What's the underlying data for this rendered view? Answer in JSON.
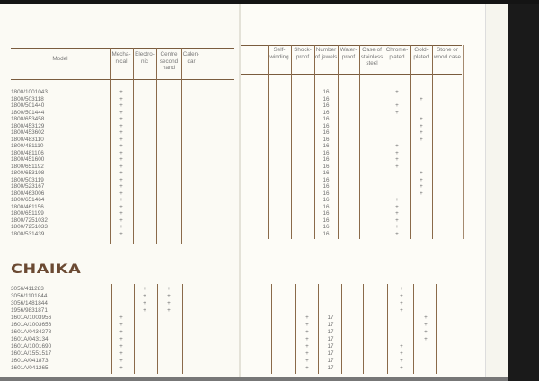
{
  "headers": {
    "model": "Model",
    "mechanical": "Mecha-\nnical",
    "electronic": "Electro-\nnic",
    "centre_second": "Centre\nsecond\nhand",
    "calendar": "Calen-\ndar",
    "self_winding": "Self-\nwinding",
    "shockproof": "Shock-\nproof",
    "jewels": "Number\nof jewels",
    "waterproof": "Water-\nproof",
    "stainless": "Case of\nstainless\nsteel",
    "chrome": "Chrome-\nplated",
    "gold": "Gold-\nplated",
    "stone": "Stone or\nwood case"
  },
  "sections": [
    {
      "title": "",
      "rows": [
        {
          "model": "1800/1001043",
          "mechanical": "+",
          "jewels": "16",
          "chrome": "+"
        },
        {
          "model": "1800/503118",
          "mechanical": "+",
          "jewels": "16",
          "gold": "+"
        },
        {
          "model": "1800/501440",
          "mechanical": "+",
          "jewels": "16",
          "chrome": "+"
        },
        {
          "model": "1800/501444",
          "mechanical": "+",
          "jewels": "16",
          "chrome": "+"
        },
        {
          "model": "1800/653458",
          "mechanical": "+",
          "jewels": "16",
          "gold": "+"
        },
        {
          "model": "1800/453129",
          "mechanical": "+",
          "jewels": "16",
          "gold": "+"
        },
        {
          "model": "1800/453602",
          "mechanical": "+",
          "jewels": "16",
          "gold": "+"
        },
        {
          "model": "1800/483110",
          "mechanical": "+",
          "jewels": "16",
          "gold": "+"
        },
        {
          "model": "1800/481110",
          "mechanical": "+",
          "jewels": "16",
          "chrome": "+"
        },
        {
          "model": "1800/481106",
          "mechanical": "+",
          "jewels": "16",
          "chrome": "+"
        },
        {
          "model": "1800/451600",
          "mechanical": "+",
          "jewels": "16",
          "chrome": "+"
        },
        {
          "model": "1800/651192",
          "mechanical": "+",
          "jewels": "16",
          "chrome": "+"
        },
        {
          "model": "1800/653198",
          "mechanical": "+",
          "jewels": "16",
          "gold": "+"
        },
        {
          "model": "1800/503119",
          "mechanical": "+",
          "jewels": "16",
          "gold": "+"
        },
        {
          "model": "1800/523167",
          "mechanical": "+",
          "jewels": "16",
          "gold": "+"
        },
        {
          "model": "1800/463006",
          "mechanical": "+",
          "jewels": "16",
          "gold": "+"
        },
        {
          "model": "1800/651464",
          "mechanical": "+",
          "jewels": "16",
          "chrome": "+"
        },
        {
          "model": "1800/461156",
          "mechanical": "+",
          "jewels": "16",
          "chrome": "+"
        },
        {
          "model": "1800/651199",
          "mechanical": "+",
          "jewels": "16",
          "chrome": "+"
        },
        {
          "model": "1800/7251032",
          "mechanical": "+",
          "jewels": "16",
          "chrome": "+"
        },
        {
          "model": "1800/7251033",
          "mechanical": "+",
          "jewels": "16",
          "chrome": "+"
        },
        {
          "model": "1800/531439",
          "mechanical": "+",
          "jewels": "16",
          "chrome": "+"
        }
      ]
    },
    {
      "title": "CHAIKA",
      "rows": [
        {
          "model": "3056/411283",
          "electronic": "+",
          "centre_second": "+",
          "chrome": "+"
        },
        {
          "model": "3056/1101844",
          "electronic": "+",
          "centre_second": "+",
          "chrome": "+"
        },
        {
          "model": "3056/1481844",
          "electronic": "+",
          "centre_second": "+",
          "chrome": "+"
        },
        {
          "model": "1956/9831871",
          "electronic": "+",
          "centre_second": "+",
          "chrome": "+"
        },
        {
          "model": "1601A/1003956",
          "mechanical": "+",
          "shockproof": "+",
          "jewels": "17",
          "gold": "+"
        },
        {
          "model": "1601A/1003656",
          "mechanical": "+",
          "shockproof": "+",
          "jewels": "17",
          "gold": "+"
        },
        {
          "model": "1601A/0434278",
          "mechanical": "+",
          "shockproof": "+",
          "jewels": "17",
          "gold": "+"
        },
        {
          "model": "1601A/043134",
          "mechanical": "+",
          "shockproof": "+",
          "jewels": "17",
          "gold": "+"
        },
        {
          "model": "1601A/1001690",
          "mechanical": "+",
          "shockproof": "+",
          "jewels": "17",
          "chrome": "+"
        },
        {
          "model": "1601A/1551517",
          "mechanical": "+",
          "shockproof": "+",
          "jewels": "17",
          "chrome": "+"
        },
        {
          "model": "1601A/041873",
          "mechanical": "+",
          "shockproof": "+",
          "jewels": "17",
          "chrome": "+"
        },
        {
          "model": "1601A/041265",
          "mechanical": "+",
          "shockproof": "+",
          "jewels": "17",
          "chrome": "+"
        }
      ]
    }
  ],
  "colors": {
    "rule": "#7a5c3e",
    "brand": "#6b4a33",
    "paper": "#fbfaf4"
  }
}
